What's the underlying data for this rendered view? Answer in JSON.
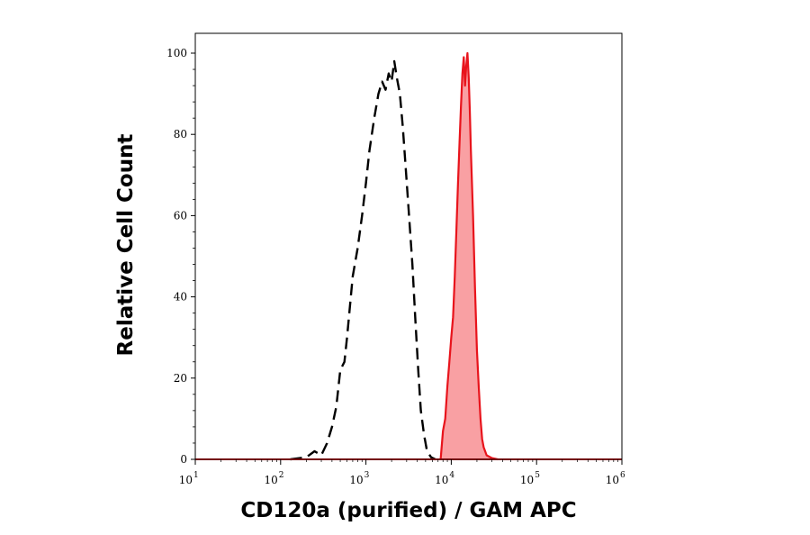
{
  "chart_data": {
    "type": "area",
    "xlabel": "CD120a (purified) / GAM APC",
    "ylabel": "Relative Cell Count",
    "x_scale": "log",
    "xlim": [
      10,
      1000000
    ],
    "ylim": [
      0,
      100
    ],
    "grid": false,
    "x_ticks": [
      {
        "base": "10",
        "exp": "1"
      },
      {
        "base": "10",
        "exp": "2"
      },
      {
        "base": "10",
        "exp": "3"
      },
      {
        "base": "10",
        "exp": "4"
      },
      {
        "base": "10",
        "exp": "5"
      },
      {
        "base": "10",
        "exp": "6"
      }
    ],
    "y_ticks": [
      "0",
      "20",
      "40",
      "60",
      "80",
      "100"
    ],
    "series": [
      {
        "style": "dashed",
        "color": "#000000",
        "points": [
          [
            130,
            0
          ],
          [
            200,
            0.5
          ],
          [
            250,
            2
          ],
          [
            300,
            1
          ],
          [
            350,
            4
          ],
          [
            400,
            8
          ],
          [
            450,
            13
          ],
          [
            500,
            22
          ],
          [
            560,
            24
          ],
          [
            600,
            30
          ],
          [
            700,
            45
          ],
          [
            800,
            52
          ],
          [
            900,
            60
          ],
          [
            1000,
            68
          ],
          [
            1100,
            76
          ],
          [
            1250,
            84
          ],
          [
            1400,
            90
          ],
          [
            1550,
            93
          ],
          [
            1700,
            91
          ],
          [
            1850,
            95
          ],
          [
            2000,
            93
          ],
          [
            2150,
            98
          ],
          [
            2300,
            94
          ],
          [
            2500,
            90
          ],
          [
            2700,
            82
          ],
          [
            2900,
            73
          ],
          [
            3200,
            60
          ],
          [
            3500,
            48
          ],
          [
            3800,
            34
          ],
          [
            4100,
            22
          ],
          [
            4400,
            12
          ],
          [
            4800,
            6
          ],
          [
            5200,
            2
          ],
          [
            5800,
            0.5
          ],
          [
            6500,
            0
          ]
        ]
      },
      {
        "style": "filled",
        "color": "#e8141c",
        "fill": "#f9a0a3",
        "points": [
          [
            7500,
            0
          ],
          [
            8000,
            7
          ],
          [
            8500,
            10
          ],
          [
            9000,
            18
          ],
          [
            9500,
            24
          ],
          [
            10000,
            30
          ],
          [
            10500,
            35
          ],
          [
            11000,
            45
          ],
          [
            11500,
            57
          ],
          [
            12000,
            68
          ],
          [
            12500,
            78
          ],
          [
            13000,
            87
          ],
          [
            13500,
            95
          ],
          [
            14000,
            99
          ],
          [
            14500,
            92
          ],
          [
            15000,
            97
          ],
          [
            15500,
            100
          ],
          [
            16000,
            94
          ],
          [
            16500,
            86
          ],
          [
            17000,
            76
          ],
          [
            18000,
            60
          ],
          [
            19000,
            42
          ],
          [
            20000,
            27
          ],
          [
            21000,
            18
          ],
          [
            22000,
            10
          ],
          [
            23000,
            5
          ],
          [
            24000,
            3
          ],
          [
            26000,
            1
          ],
          [
            30000,
            0.3
          ],
          [
            35000,
            0
          ]
        ]
      }
    ]
  }
}
